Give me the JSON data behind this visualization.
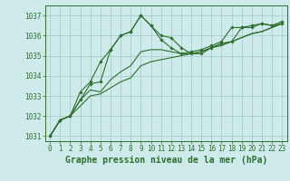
{
  "background_color": "#ceeaea",
  "grid_color": "#a8cece",
  "line_color": "#2d6e2d",
  "marker_color": "#2d6e2d",
  "xlabel": "Graphe pression niveau de la mer (hPa)",
  "xlabel_fontsize": 7.0,
  "ylim": [
    1030.75,
    1037.5
  ],
  "xlim": [
    -0.5,
    23.5
  ],
  "yticks": [
    1031,
    1032,
    1033,
    1034,
    1035,
    1036,
    1037
  ],
  "xticks": [
    0,
    1,
    2,
    3,
    4,
    5,
    6,
    7,
    8,
    9,
    10,
    11,
    12,
    13,
    14,
    15,
    16,
    17,
    18,
    19,
    20,
    21,
    22,
    23
  ],
  "series": [
    [
      1031.0,
      1031.8,
      1032.0,
      1032.8,
      1033.6,
      1033.7,
      1035.3,
      1036.0,
      1036.2,
      1037.0,
      1036.5,
      1036.0,
      1035.9,
      1035.4,
      1035.1,
      1035.1,
      1035.4,
      1035.6,
      1035.7,
      1036.4,
      1036.4,
      1036.6,
      1036.5,
      1036.6
    ],
    [
      1031.0,
      1031.8,
      1032.0,
      1032.8,
      1033.3,
      1033.2,
      1033.8,
      1034.2,
      1034.5,
      1035.2,
      1035.3,
      1035.3,
      1035.2,
      1035.1,
      1035.1,
      1035.2,
      1035.4,
      1035.6,
      1035.7,
      1035.9,
      1036.1,
      1036.2,
      1036.4,
      1036.6
    ],
    [
      1031.0,
      1031.8,
      1032.0,
      1032.5,
      1033.0,
      1033.1,
      1033.4,
      1033.7,
      1033.9,
      1034.5,
      1034.7,
      1034.8,
      1034.9,
      1035.0,
      1035.1,
      1035.2,
      1035.4,
      1035.5,
      1035.7,
      1035.9,
      1036.1,
      1036.2,
      1036.4,
      1036.6
    ],
    [
      1031.0,
      1031.8,
      1032.0,
      1033.2,
      1033.7,
      1034.7,
      1035.3,
      1036.0,
      1036.2,
      1037.0,
      1036.5,
      1035.8,
      1035.4,
      1035.1,
      1035.2,
      1035.3,
      1035.5,
      1035.7,
      1036.4,
      1036.4,
      1036.5,
      1036.6,
      1036.5,
      1036.7
    ]
  ],
  "marker_series": [
    0,
    3
  ],
  "tick_fontsize": 5.5
}
